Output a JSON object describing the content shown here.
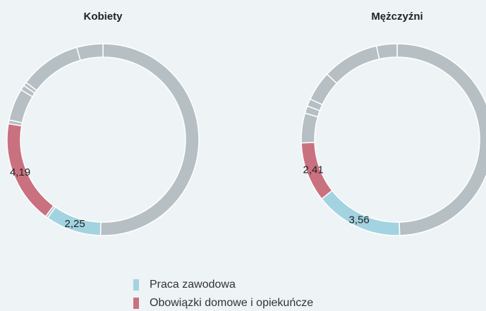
{
  "chart_data": [
    {
      "type": "donut",
      "title": "Kobiety",
      "values": [
        12.1,
        2.25,
        0.1,
        4.19,
        0.15,
        1.3,
        0.2,
        0.15,
        2.5,
        1.06
      ],
      "value_labels": [
        null,
        "2,25",
        null,
        "4,19",
        null,
        null,
        null,
        null,
        null,
        null
      ],
      "colors": [
        "#b6bfc4",
        "#a3d3e1",
        "#b6bfc4",
        "#c9717f",
        "#b6bfc4",
        "#b6bfc4",
        "#b6bfc4",
        "#b6bfc4",
        "#b6bfc4",
        "#b6bfc4"
      ]
    },
    {
      "type": "donut",
      "title": "Mężczyźni",
      "values": [
        11.9,
        3.56,
        2.41,
        1.2,
        0.3,
        0.3,
        1.2,
        2.3,
        0.83
      ],
      "value_labels": [
        null,
        "3,56",
        "2,41",
        null,
        null,
        null,
        null,
        null,
        null
      ],
      "colors": [
        "#b6bfc4",
        "#a3d3e1",
        "#c9717f",
        "#b6bfc4",
        "#b6bfc4",
        "#b6bfc4",
        "#b6bfc4",
        "#b6bfc4",
        "#b6bfc4"
      ]
    }
  ],
  "legend": [
    {
      "name": "Praca zawodowa",
      "color": "#a3d3e1"
    },
    {
      "name": "Obowiązki domowe i opiekuńcze",
      "color": "#c9717f"
    }
  ]
}
